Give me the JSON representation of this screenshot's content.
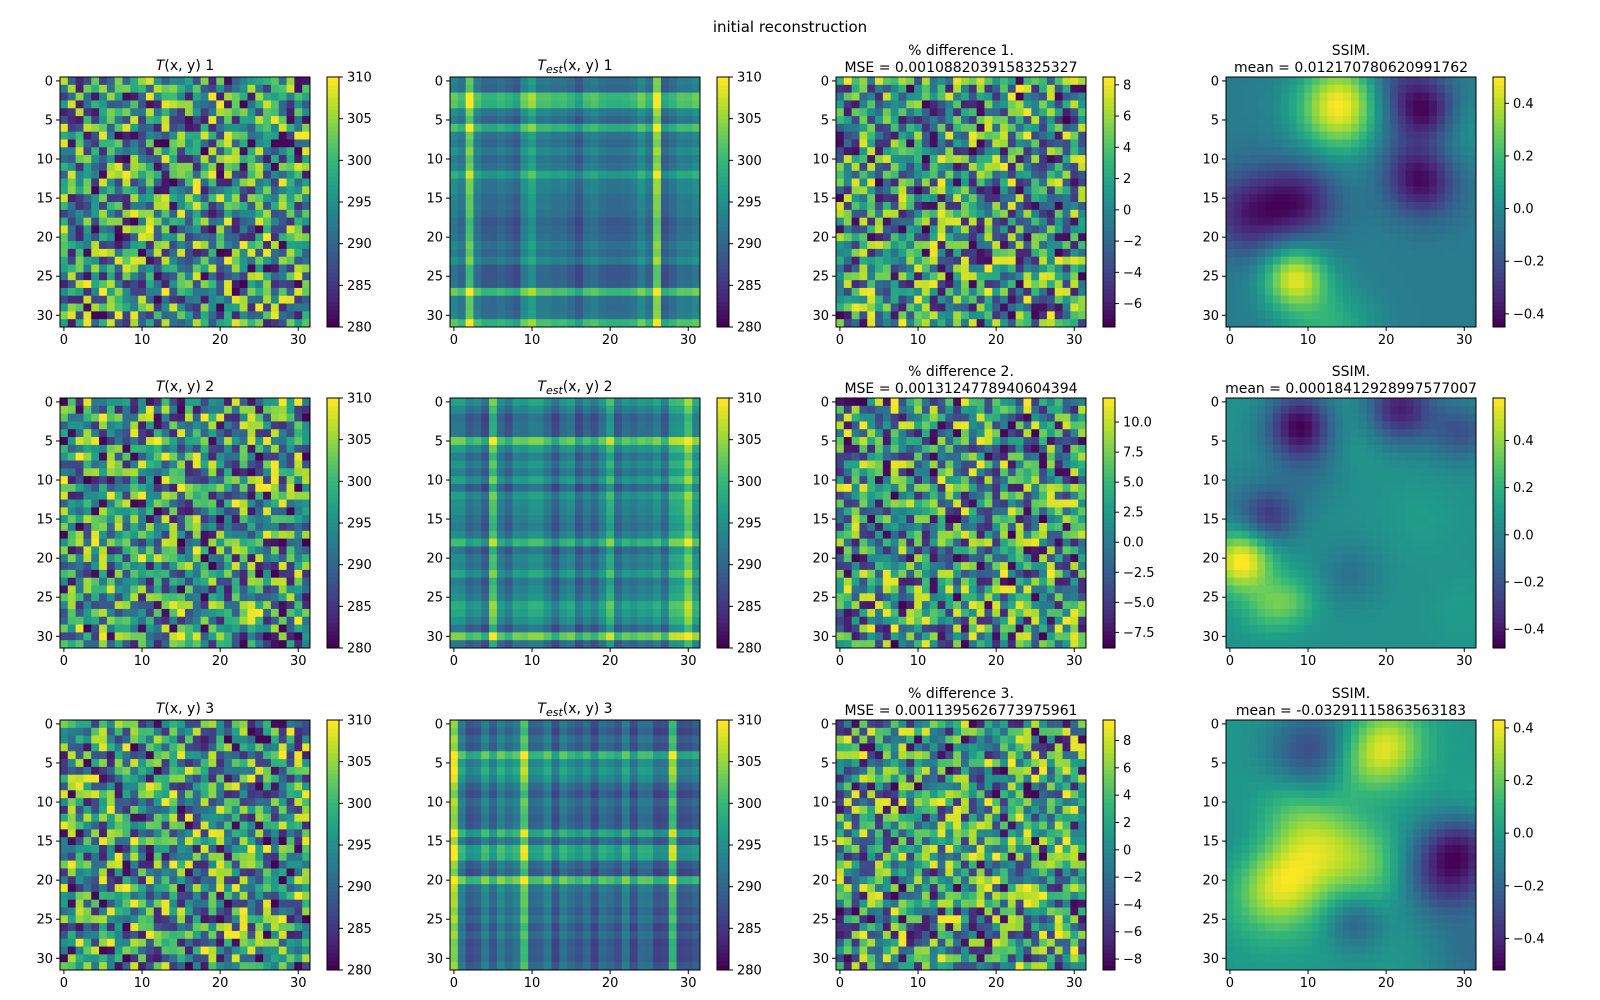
{
  "figure_title": "initial reconstruction",
  "colors": {
    "viridis": [
      "#440154",
      "#482878",
      "#3e4989",
      "#31688e",
      "#26828e",
      "#1f9e89",
      "#35b779",
      "#6ece58",
      "#b5de2b",
      "#fde725"
    ]
  },
  "chart_data": [
    {
      "type": "heatmap",
      "row": 0,
      "col": 0,
      "kind": "random",
      "seed": 11,
      "title": "T(x, y) 1",
      "title_parts": {
        "base": "T",
        "sub": "",
        "rest": "(x, y) 1"
      },
      "title_line2": "",
      "grid_size": 32,
      "xlim": [
        -0.5,
        31.5
      ],
      "ylim": [
        31.5,
        -0.5
      ],
      "xticks": [
        "0",
        "10",
        "20",
        "30"
      ],
      "yticks": [
        "0",
        "5",
        "10",
        "15",
        "20",
        "25",
        "30"
      ],
      "colorbar": {
        "range": [
          280,
          310
        ],
        "ticks": [
          "310",
          "305",
          "300",
          "295",
          "290",
          "285",
          "280"
        ]
      }
    },
    {
      "type": "heatmap",
      "row": 0,
      "col": 1,
      "kind": "stripes",
      "seed": 23,
      "title": "Test(x, y) 1",
      "title_parts": {
        "base": "T",
        "sub": "est",
        "rest": "(x, y) 1"
      },
      "title_line2": "",
      "grid_size": 32,
      "xlim": [
        -0.5,
        31.5
      ],
      "ylim": [
        31.5,
        -0.5
      ],
      "xticks": [
        "0",
        "10",
        "20",
        "30"
      ],
      "yticks": [
        "0",
        "5",
        "10",
        "15",
        "20",
        "25",
        "30"
      ],
      "colorbar": {
        "range": [
          280,
          310
        ],
        "ticks": [
          "310",
          "305",
          "300",
          "295",
          "290",
          "285",
          "280"
        ]
      }
    },
    {
      "type": "heatmap",
      "row": 0,
      "col": 2,
      "kind": "random",
      "seed": 37,
      "title": "% difference 1.",
      "title_parts": {
        "base": "% difference 1.",
        "sub": "",
        "rest": ""
      },
      "title_line2": "MSE = 0.0010882039158325327",
      "grid_size": 32,
      "xlim": [
        -0.5,
        31.5
      ],
      "ylim": [
        31.5,
        -0.5
      ],
      "xticks": [
        "0",
        "10",
        "20",
        "30"
      ],
      "yticks": [
        "0",
        "5",
        "10",
        "15",
        "20",
        "25",
        "30"
      ],
      "colorbar": {
        "range": [
          -7.5,
          8.5
        ],
        "ticks": [
          "8",
          "6",
          "4",
          "2",
          "0",
          "−2",
          "−4",
          "−6"
        ],
        "tick_values": [
          8,
          6,
          4,
          2,
          0,
          -2,
          -4,
          -6
        ]
      }
    },
    {
      "type": "heatmap",
      "row": 0,
      "col": 3,
      "kind": "smooth",
      "seed": 41,
      "title": "SSIM.",
      "title_parts": {
        "base": "SSIM.",
        "sub": "",
        "rest": ""
      },
      "title_line2": "mean = 0.012170780620991762",
      "grid_size": 32,
      "xlim": [
        -0.5,
        31.5
      ],
      "ylim": [
        31.5,
        -0.5
      ],
      "xticks": [
        "0",
        "10",
        "20",
        "30"
      ],
      "yticks": [
        "0",
        "5",
        "10",
        "15",
        "20",
        "25",
        "30"
      ],
      "colorbar": {
        "range": [
          -0.45,
          0.5
        ],
        "ticks": [
          "0.4",
          "0.2",
          "0.0",
          "−0.2",
          "−0.4"
        ],
        "tick_values": [
          0.4,
          0.2,
          0,
          -0.2,
          -0.4
        ]
      }
    },
    {
      "type": "heatmap",
      "row": 1,
      "col": 0,
      "kind": "random",
      "seed": 53,
      "title": "T(x, y) 2",
      "title_parts": {
        "base": "T",
        "sub": "",
        "rest": "(x, y) 2"
      },
      "title_line2": "",
      "grid_size": 32,
      "xlim": [
        -0.5,
        31.5
      ],
      "ylim": [
        31.5,
        -0.5
      ],
      "xticks": [
        "0",
        "10",
        "20",
        "30"
      ],
      "yticks": [
        "0",
        "5",
        "10",
        "15",
        "20",
        "25",
        "30"
      ],
      "colorbar": {
        "range": [
          280,
          310
        ],
        "ticks": [
          "310",
          "305",
          "300",
          "295",
          "290",
          "285",
          "280"
        ]
      }
    },
    {
      "type": "heatmap",
      "row": 1,
      "col": 1,
      "kind": "stripes",
      "seed": 67,
      "title": "Test(x, y) 2",
      "title_parts": {
        "base": "T",
        "sub": "est",
        "rest": "(x, y) 2"
      },
      "title_line2": "",
      "grid_size": 32,
      "xlim": [
        -0.5,
        31.5
      ],
      "ylim": [
        31.5,
        -0.5
      ],
      "xticks": [
        "0",
        "10",
        "20",
        "30"
      ],
      "yticks": [
        "0",
        "5",
        "10",
        "15",
        "20",
        "25",
        "30"
      ],
      "colorbar": {
        "range": [
          280,
          310
        ],
        "ticks": [
          "310",
          "305",
          "300",
          "295",
          "290",
          "285",
          "280"
        ]
      }
    },
    {
      "type": "heatmap",
      "row": 1,
      "col": 2,
      "kind": "random",
      "seed": 71,
      "title": "% difference 2.",
      "title_parts": {
        "base": "% difference 2.",
        "sub": "",
        "rest": ""
      },
      "title_line2": "MSE = 0.0013124778940604394",
      "grid_size": 32,
      "xlim": [
        -0.5,
        31.5
      ],
      "ylim": [
        31.5,
        -0.5
      ],
      "xticks": [
        "0",
        "10",
        "20",
        "30"
      ],
      "yticks": [
        "0",
        "5",
        "10",
        "15",
        "20",
        "25",
        "30"
      ],
      "colorbar": {
        "range": [
          -8.8,
          12
        ],
        "ticks": [
          "10.0",
          "7.5",
          "5.0",
          "2.5",
          "0.0",
          "−2.5",
          "−5.0",
          "−7.5"
        ],
        "tick_values": [
          10,
          7.5,
          5,
          2.5,
          0,
          -2.5,
          -5,
          -7.5
        ]
      }
    },
    {
      "type": "heatmap",
      "row": 1,
      "col": 3,
      "kind": "smooth",
      "seed": 83,
      "title": "SSIM.",
      "title_parts": {
        "base": "SSIM.",
        "sub": "",
        "rest": ""
      },
      "title_line2": "mean = 0.00018412928997577007",
      "grid_size": 32,
      "xlim": [
        -0.5,
        31.5
      ],
      "ylim": [
        31.5,
        -0.5
      ],
      "xticks": [
        "0",
        "10",
        "20",
        "30"
      ],
      "yticks": [
        "0",
        "5",
        "10",
        "15",
        "20",
        "25",
        "30"
      ],
      "colorbar": {
        "range": [
          -0.48,
          0.58
        ],
        "ticks": [
          "0.4",
          "0.2",
          "0.0",
          "−0.2",
          "−0.4"
        ],
        "tick_values": [
          0.4,
          0.2,
          0,
          -0.2,
          -0.4
        ]
      }
    },
    {
      "type": "heatmap",
      "row": 2,
      "col": 0,
      "kind": "random",
      "seed": 97,
      "title": "T(x, y) 3",
      "title_parts": {
        "base": "T",
        "sub": "",
        "rest": "(x, y) 3"
      },
      "title_line2": "",
      "grid_size": 32,
      "xlim": [
        -0.5,
        31.5
      ],
      "ylim": [
        31.5,
        -0.5
      ],
      "xticks": [
        "0",
        "10",
        "20",
        "30"
      ],
      "yticks": [
        "0",
        "5",
        "10",
        "15",
        "20",
        "25",
        "30"
      ],
      "colorbar": {
        "range": [
          280,
          310
        ],
        "ticks": [
          "310",
          "305",
          "300",
          "295",
          "290",
          "285",
          "280"
        ]
      }
    },
    {
      "type": "heatmap",
      "row": 2,
      "col": 1,
      "kind": "stripes",
      "seed": 101,
      "title": "Test(x, y) 3",
      "title_parts": {
        "base": "T",
        "sub": "est",
        "rest": "(x, y) 3"
      },
      "title_line2": "",
      "grid_size": 32,
      "xlim": [
        -0.5,
        31.5
      ],
      "ylim": [
        31.5,
        -0.5
      ],
      "xticks": [
        "0",
        "10",
        "20",
        "30"
      ],
      "yticks": [
        "0",
        "5",
        "10",
        "15",
        "20",
        "25",
        "30"
      ],
      "colorbar": {
        "range": [
          280,
          310
        ],
        "ticks": [
          "310",
          "305",
          "300",
          "295",
          "290",
          "285",
          "280"
        ]
      }
    },
    {
      "type": "heatmap",
      "row": 2,
      "col": 2,
      "kind": "random",
      "seed": 113,
      "title": "% difference 3.",
      "title_parts": {
        "base": "% difference 3.",
        "sub": "",
        "rest": ""
      },
      "title_line2": "MSE = 0.0011395626773975961",
      "grid_size": 32,
      "xlim": [
        -0.5,
        31.5
      ],
      "ylim": [
        31.5,
        -0.5
      ],
      "xticks": [
        "0",
        "10",
        "20",
        "30"
      ],
      "yticks": [
        "0",
        "5",
        "10",
        "15",
        "20",
        "25",
        "30"
      ],
      "colorbar": {
        "range": [
          -8.8,
          9.5
        ],
        "ticks": [
          "8",
          "6",
          "4",
          "2",
          "0",
          "−2",
          "−4",
          "−6",
          "−8"
        ],
        "tick_values": [
          8,
          6,
          4,
          2,
          0,
          -2,
          -4,
          -6,
          -8
        ]
      }
    },
    {
      "type": "heatmap",
      "row": 2,
      "col": 3,
      "kind": "smooth",
      "seed": 127,
      "title": "SSIM.",
      "title_parts": {
        "base": "SSIM.",
        "sub": "",
        "rest": ""
      },
      "title_line2": "mean = -0.03291115863563183",
      "grid_size": 32,
      "xlim": [
        -0.5,
        31.5
      ],
      "ylim": [
        31.5,
        -0.5
      ],
      "xticks": [
        "0",
        "10",
        "20",
        "30"
      ],
      "yticks": [
        "0",
        "5",
        "10",
        "15",
        "20",
        "25",
        "30"
      ],
      "colorbar": {
        "range": [
          -0.52,
          0.43
        ],
        "ticks": [
          "0.4",
          "0.2",
          "0.0",
          "−0.2",
          "−0.4"
        ],
        "tick_values": [
          0.4,
          0.2,
          0,
          -0.2,
          -0.4
        ]
      }
    }
  ]
}
